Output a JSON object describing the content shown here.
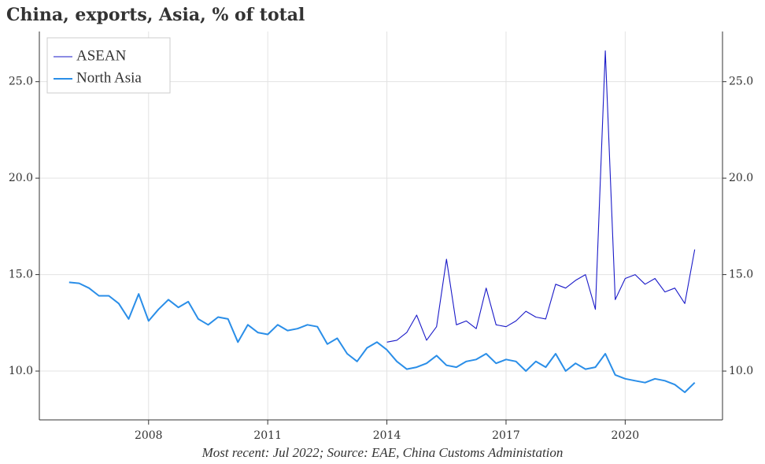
{
  "chart_data": {
    "type": "line",
    "title": "China, exports, Asia, % of total",
    "footnote": "Most recent: Jul 2022; Source: EAE, China Customs Administation",
    "x": [
      2006.0,
      2006.25,
      2006.5,
      2006.75,
      2007.0,
      2007.25,
      2007.5,
      2007.75,
      2008.0,
      2008.25,
      2008.5,
      2008.75,
      2009.0,
      2009.25,
      2009.5,
      2009.75,
      2010.0,
      2010.25,
      2010.5,
      2010.75,
      2011.0,
      2011.25,
      2011.5,
      2011.75,
      2012.0,
      2012.25,
      2012.5,
      2012.75,
      2013.0,
      2013.25,
      2013.5,
      2013.75,
      2014.0,
      2014.25,
      2014.5,
      2014.75,
      2015.0,
      2015.25,
      2015.5,
      2015.75,
      2016.0,
      2016.25,
      2016.5,
      2016.75,
      2017.0,
      2017.25,
      2017.5,
      2017.75,
      2018.0,
      2018.25,
      2018.5,
      2018.75,
      2019.0,
      2019.25,
      2019.5,
      2019.75,
      2020.0,
      2020.25,
      2020.5,
      2020.75,
      2021.0,
      2021.25,
      2021.5,
      2021.75
    ],
    "series": [
      {
        "name": "ASEAN",
        "color": "#1a1ac8",
        "values": [
          null,
          null,
          null,
          null,
          null,
          null,
          null,
          null,
          null,
          null,
          null,
          null,
          null,
          null,
          null,
          null,
          null,
          null,
          null,
          null,
          null,
          null,
          null,
          null,
          null,
          null,
          null,
          null,
          null,
          null,
          null,
          null,
          11.5,
          11.6,
          12.0,
          12.9,
          11.6,
          12.3,
          15.8,
          12.4,
          12.6,
          12.2,
          14.3,
          12.4,
          12.3,
          12.6,
          13.1,
          12.8,
          12.7,
          14.5,
          14.3,
          14.7,
          15.0,
          13.2,
          26.6,
          13.7,
          14.8,
          15.0,
          14.5,
          14.8,
          14.1,
          14.3,
          13.5,
          16.3
        ]
      },
      {
        "name": "North Asia",
        "color": "#2a8ee8",
        "values": [
          14.6,
          14.55,
          14.3,
          13.9,
          13.9,
          13.5,
          12.7,
          14.0,
          12.6,
          13.2,
          13.7,
          13.3,
          13.6,
          12.7,
          12.4,
          12.8,
          12.7,
          11.5,
          12.4,
          12.0,
          11.9,
          12.4,
          12.1,
          12.2,
          12.4,
          12.3,
          11.4,
          11.7,
          10.9,
          10.5,
          11.2,
          11.5,
          11.1,
          10.5,
          10.1,
          10.2,
          10.4,
          10.8,
          10.3,
          10.2,
          10.5,
          10.6,
          10.9,
          10.4,
          10.6,
          10.5,
          10.0,
          10.5,
          10.2,
          10.9,
          10.0,
          10.4,
          10.1,
          10.2,
          10.9,
          9.8,
          9.6,
          9.5,
          9.4,
          9.6,
          9.5,
          9.3,
          8.9,
          9.4
        ]
      }
    ],
    "xlim": [
      2005.25,
      2022.45
    ],
    "xticks": [
      2008,
      2011,
      2014,
      2017,
      2020
    ],
    "ylim": [
      7.47,
      27.6
    ],
    "yticks": [
      {
        "value": 10,
        "label": "10.0"
      },
      {
        "value": 15,
        "label": "15.0"
      },
      {
        "value": 20,
        "label": "20.0"
      },
      {
        "value": 25,
        "label": "25.0"
      }
    ],
    "grid": true,
    "legend": "upper left"
  }
}
